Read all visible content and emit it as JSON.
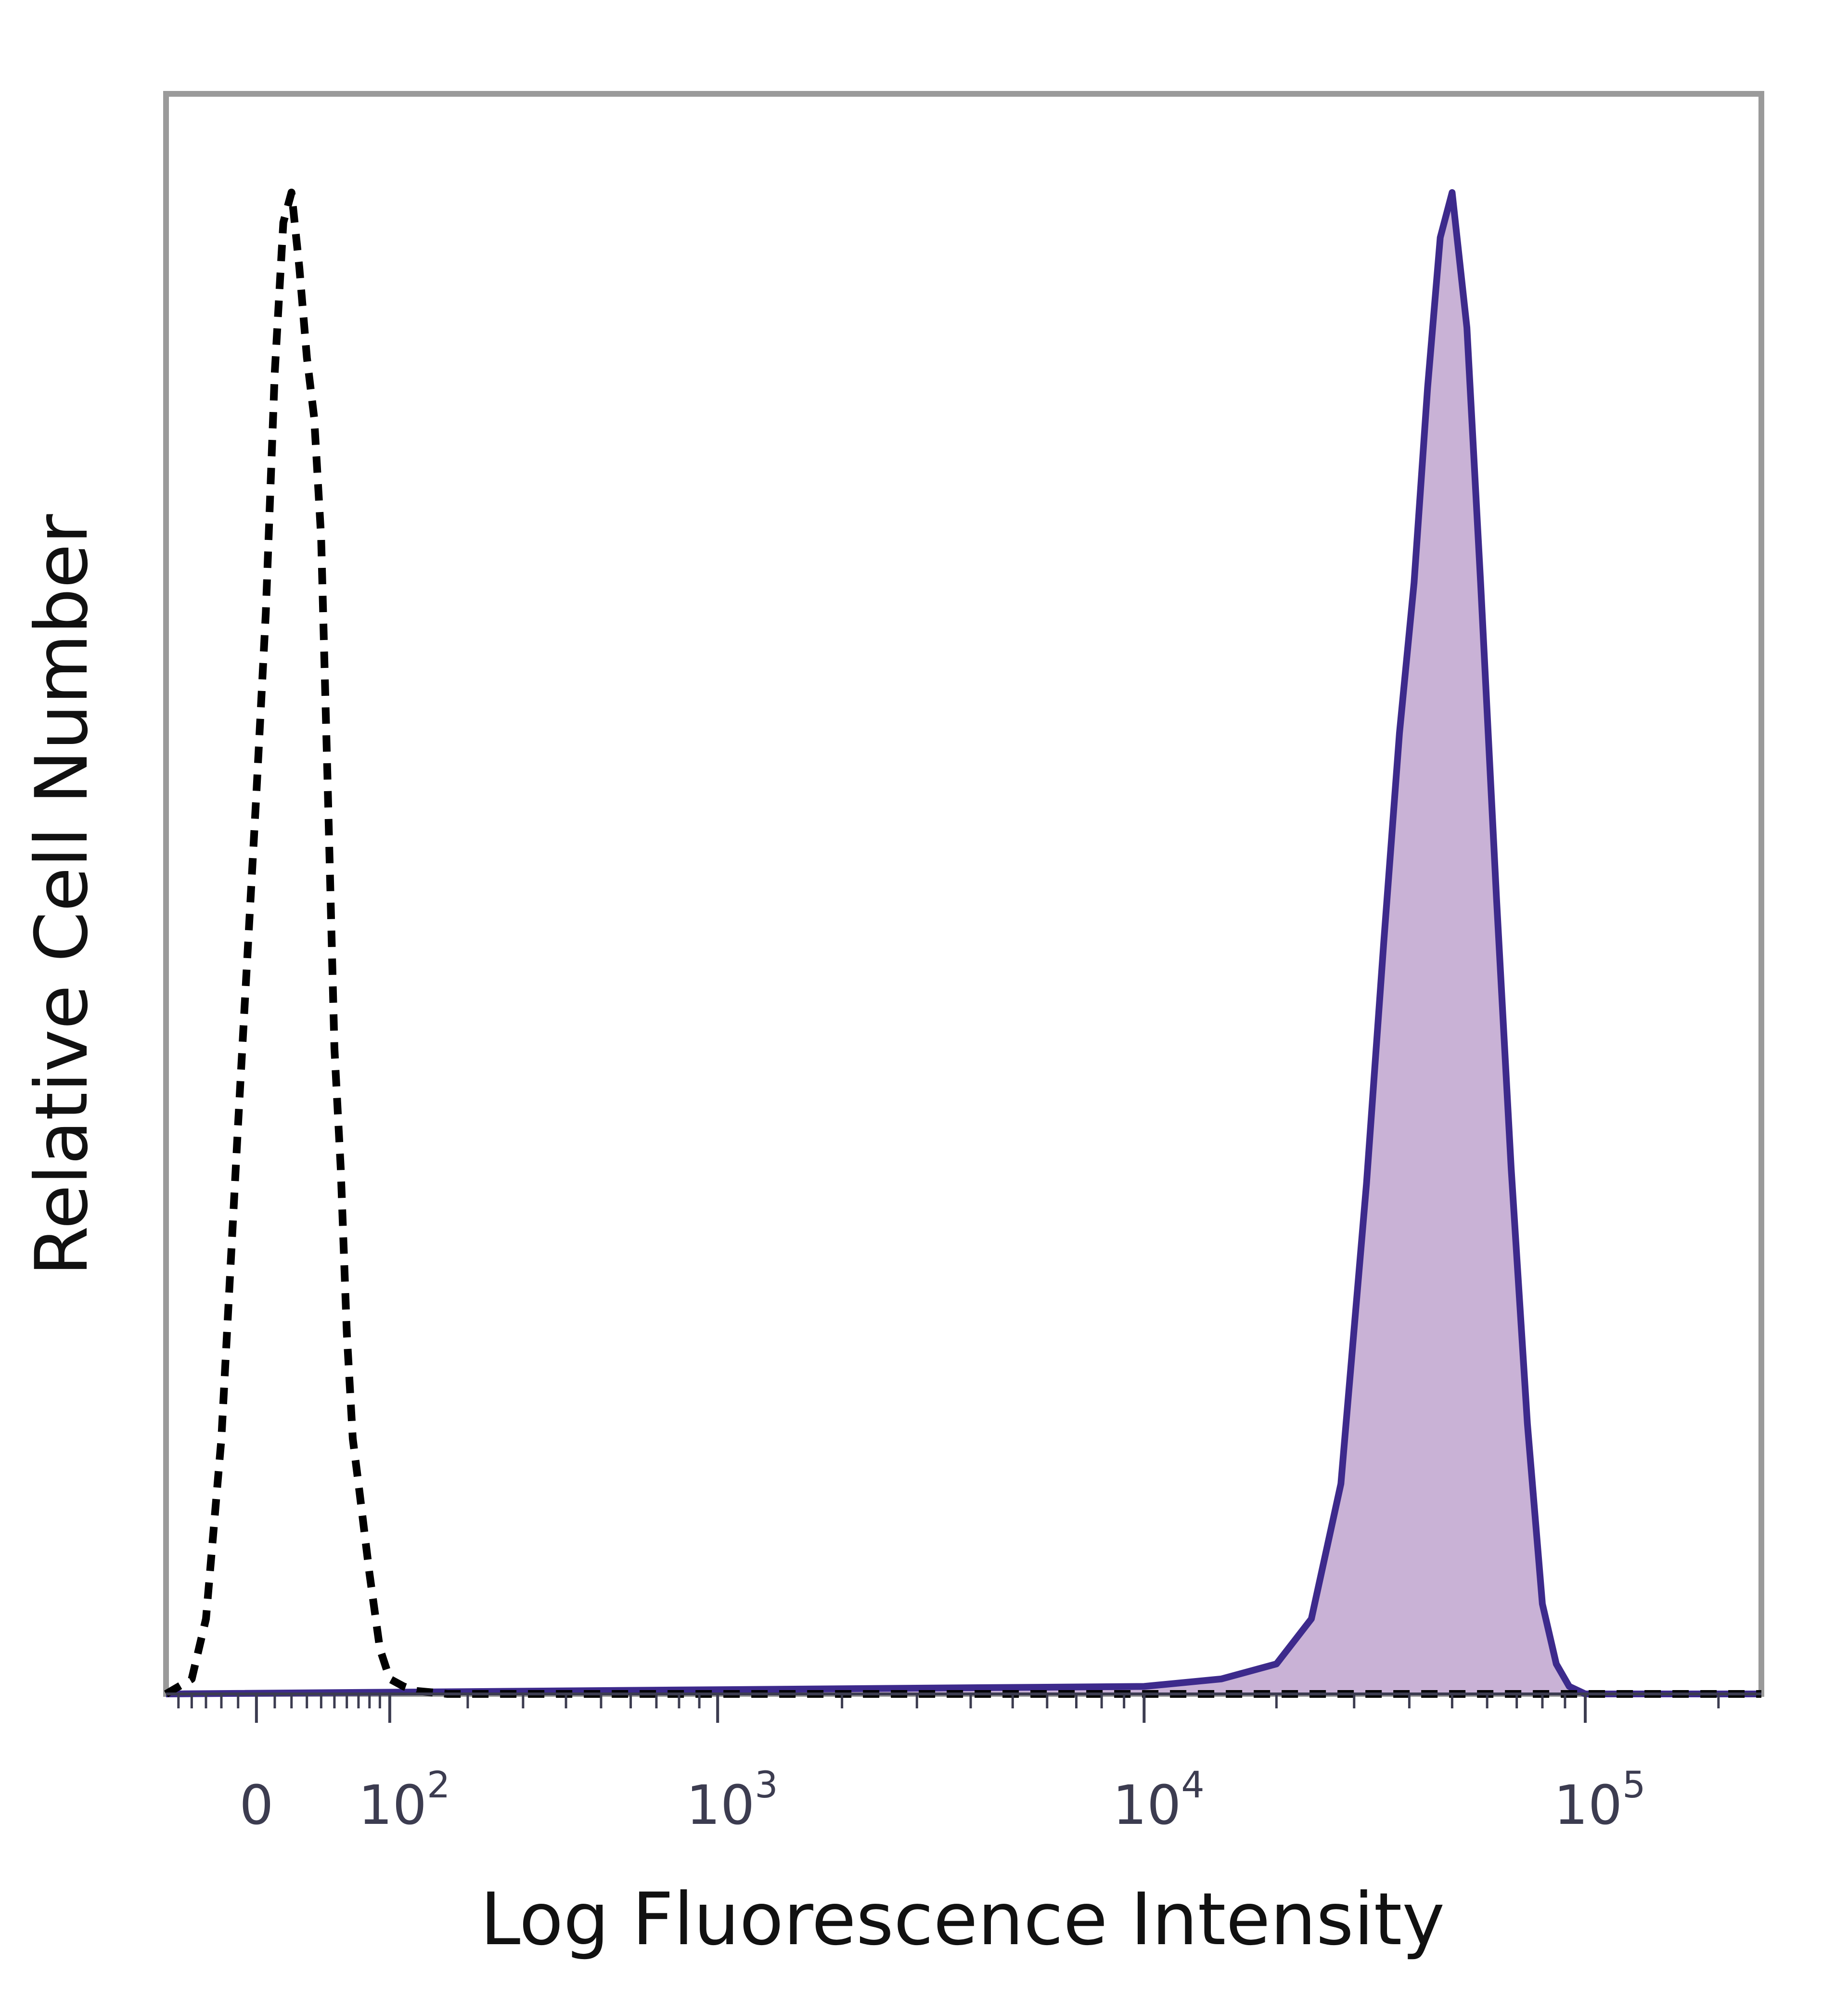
{
  "chart_data": {
    "type": "area",
    "xlabel": "Log Fluorescence Intensity",
    "ylabel": "Relative Cell Number",
    "x_scale": "biexponential",
    "xlim": [
      -60,
      250000
    ],
    "ylim": [
      0,
      1
    ],
    "grid": false,
    "legend": "none",
    "x_ticks": [
      {
        "value": 0,
        "base": "0",
        "exp": ""
      },
      {
        "value": 100,
        "base": "10",
        "exp": "2"
      },
      {
        "value": 1000,
        "base": "10",
        "exp": "3"
      },
      {
        "value": 10000,
        "base": "10",
        "exp": "4"
      },
      {
        "value": 100000,
        "base": "10",
        "exp": "5"
      }
    ],
    "series": [
      {
        "style": "dashed",
        "color": "#000000",
        "fill": "none",
        "x": [
          -60,
          -40,
          -30,
          -20,
          -10,
          0,
          5,
          10,
          15,
          20,
          25,
          30,
          35,
          40,
          45,
          50,
          55,
          60,
          65,
          70,
          80,
          90,
          100,
          115,
          130,
          150,
          170,
          200,
          250000
        ],
        "y": [
          0,
          0.01,
          0.05,
          0.17,
          0.38,
          0.6,
          0.72,
          0.88,
          0.98,
          1.0,
          0.95,
          0.89,
          0.85,
          0.77,
          0.6,
          0.43,
          0.35,
          0.24,
          0.17,
          0.14,
          0.08,
          0.03,
          0.01,
          0.005,
          0.002,
          0.001,
          0,
          0,
          0
        ]
      },
      {
        "style": "solid",
        "color": "#3d2a8c",
        "fill": "#c9b2d6",
        "x": [
          -60,
          10000,
          15000,
          20000,
          24000,
          28000,
          32000,
          35000,
          38000,
          41000,
          44000,
          47000,
          50000,
          54000,
          58000,
          63000,
          68000,
          74000,
          80000,
          86000,
          92000,
          100000,
          250000
        ],
        "y": [
          0,
          0.005,
          0.01,
          0.02,
          0.05,
          0.14,
          0.34,
          0.5,
          0.64,
          0.74,
          0.87,
          0.97,
          1.0,
          0.91,
          0.74,
          0.53,
          0.35,
          0.18,
          0.06,
          0.02,
          0.005,
          0,
          0
        ]
      }
    ]
  }
}
